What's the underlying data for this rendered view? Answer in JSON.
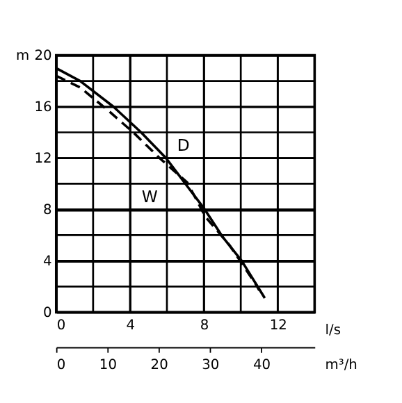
{
  "chart_data": {
    "type": "line",
    "xlabel": "l/s",
    "ylabel": "m",
    "x2label": "m³/h",
    "xlim": [
      0,
      14
    ],
    "ylim": [
      0,
      20
    ],
    "x2lim": [
      0,
      50.4
    ],
    "xticks": [
      0,
      {
        "value": 2,
        "label": null
      },
      4,
      {
        "value": 6,
        "label": null
      },
      8,
      {
        "value": 10,
        "label": null
      },
      12,
      {
        "value": 14,
        "label": null
      }
    ],
    "yticks": [
      0,
      {
        "value": 2,
        "label": null
      },
      4,
      {
        "value": 6,
        "label": null
      },
      8,
      {
        "value": 10,
        "label": null
      },
      12,
      {
        "value": 14,
        "label": null
      },
      16,
      {
        "value": 18,
        "label": null
      },
      20
    ],
    "x2ticks": [
      0,
      10,
      20,
      30,
      40
    ],
    "grid": true,
    "series": [
      {
        "name": "D",
        "color": "#000000",
        "line_style": "solid",
        "x": [
          0,
          1.3,
          3.1,
          4.6,
          5.95,
          7.0,
          8.0,
          9.0,
          10.05,
          11.3
        ],
        "values": [
          19.0,
          18.0,
          16.0,
          14.0,
          12.0,
          10.0,
          8.1,
          5.9,
          4.0,
          1.1
        ]
      },
      {
        "name": "W",
        "color": "#000000",
        "line_style": "dashed",
        "x": [
          0,
          1.3,
          2.9,
          4.25,
          5.6,
          7.1,
          8.1,
          9.4,
          10.15,
          10.85,
          11.0
        ],
        "values": [
          18.4,
          17.5,
          15.6,
          13.9,
          12.0,
          10.1,
          7.4,
          5.2,
          3.6,
          2.1,
          1.7
        ]
      }
    ]
  }
}
